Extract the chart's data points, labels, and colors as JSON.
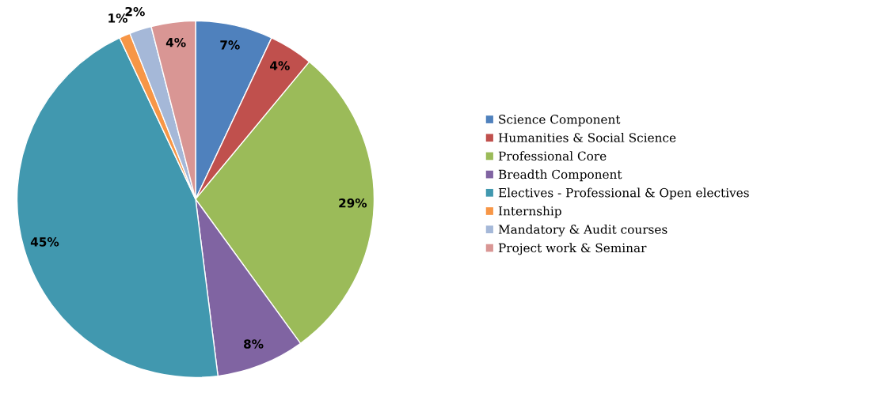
{
  "chart_data": {
    "type": "pie",
    "categories": [
      "Science Component",
      "Humanities & Social Science",
      "Professional Core",
      "Breadth Component",
      "Electives - Professional & Open electives",
      "Internship",
      "Mandatory & Audit courses",
      "Project work & Seminar"
    ],
    "values": [
      7,
      4,
      29,
      8,
      45,
      1,
      2,
      4
    ],
    "value_labels": [
      "7%",
      "4%",
      "29%",
      "8%",
      "45%",
      "1%",
      "2%",
      "4%"
    ],
    "colors": [
      "#4f81bd",
      "#c0504d",
      "#9bbb59",
      "#8064a2",
      "#4198af",
      "#f79646",
      "#a5b8d8",
      "#d99694"
    ],
    "legend": "right"
  }
}
